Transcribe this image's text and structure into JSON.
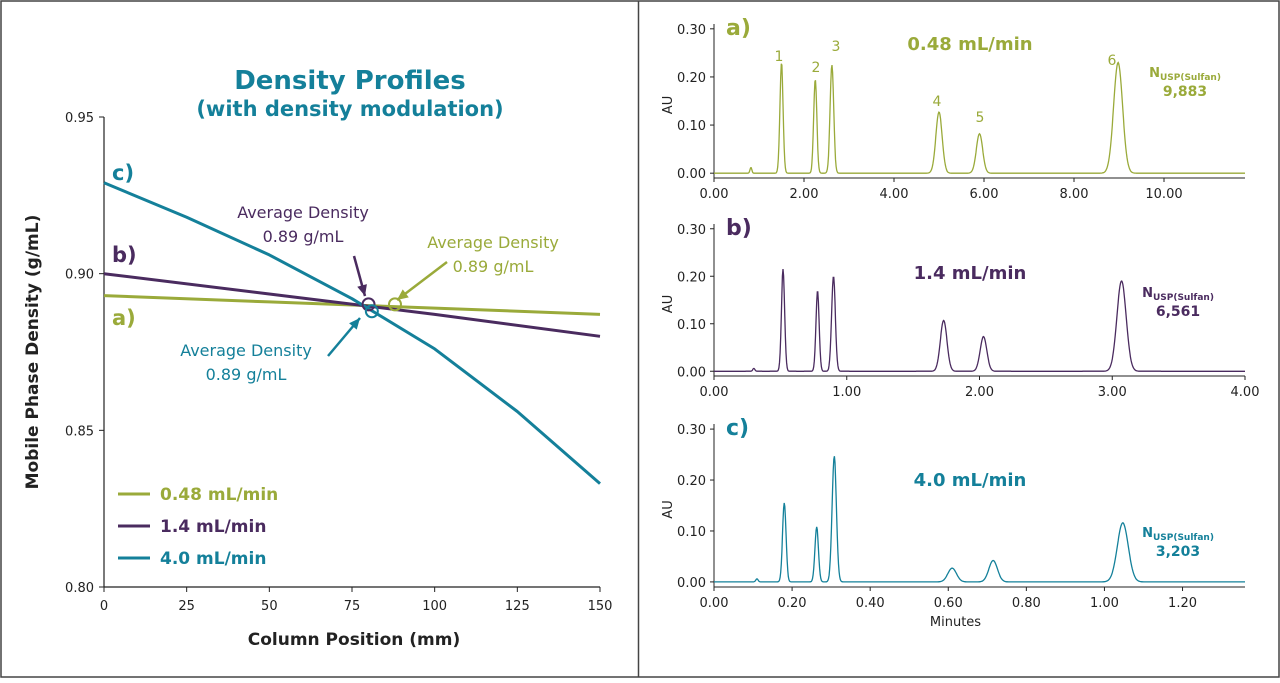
{
  "colors": {
    "olive": "#9aaa3a",
    "purple": "#4a2b5f",
    "teal": "#14809a",
    "axis": "#222222",
    "frame": "#444444"
  },
  "chart_data": [
    {
      "type": "line",
      "title": "Density Profiles",
      "subtitle": "(with density modulation)",
      "xlabel": "Column Position (mm)",
      "ylabel": "Mobile Phase Density (g/mL)",
      "xlim": [
        0,
        150
      ],
      "ylim": [
        0.8,
        0.95
      ],
      "xticks": [
        0,
        25,
        50,
        75,
        100,
        125,
        150
      ],
      "yticks": [
        0.8,
        0.85,
        0.9,
        0.95
      ],
      "xtick_labels": [
        "0",
        "25",
        "50",
        "75",
        "100",
        "125",
        "150"
      ],
      "ytick_labels": [
        "0.80",
        "0.85",
        "0.90",
        "0.95"
      ],
      "grid": false,
      "legend_position": "bottom-left",
      "series": [
        {
          "name": "0.48 mL/min",
          "color": "#9aaa3a",
          "curve_label": "a)",
          "x": [
            0,
            50,
            100,
            150
          ],
          "y": [
            0.893,
            0.891,
            0.889,
            0.887
          ]
        },
        {
          "name": "1.4 mL/min",
          "color": "#4a2b5f",
          "curve_label": "b)",
          "x": [
            0,
            50,
            100,
            150
          ],
          "y": [
            0.9,
            0.8935,
            0.887,
            0.88
          ]
        },
        {
          "name": "4.0 mL/min",
          "color": "#14809a",
          "curve_label": "c)",
          "x": [
            0,
            25,
            50,
            75,
            100,
            125,
            150
          ],
          "y": [
            0.929,
            0.918,
            0.906,
            0.892,
            0.876,
            0.856,
            0.833
          ]
        }
      ],
      "annotations": [
        {
          "line1": "Average Density",
          "line2": "0.89 g/mL",
          "color": "#4a2b5f",
          "marker_x": 80,
          "marker_y": 0.8902
        },
        {
          "line1": "Average Density",
          "line2": "0.89 g/mL",
          "color": "#9aaa3a",
          "marker_x": 88,
          "marker_y": 0.8902
        },
        {
          "line1": "Average Density",
          "line2": "0.89 g/mL",
          "color": "#14809a",
          "marker_x": 81,
          "marker_y": 0.888
        }
      ]
    },
    {
      "type": "line",
      "panel_label": "a)",
      "flow_label": "0.48 mL/min",
      "color": "#9aaa3a",
      "ylabel": "AU",
      "xlim": [
        0,
        11.8
      ],
      "ylim": [
        -0.01,
        0.31
      ],
      "xticks": [
        0,
        2,
        4,
        6,
        8,
        10
      ],
      "xtick_labels": [
        "0.00",
        "2.00",
        "4.00",
        "6.00",
        "8.00",
        "10.00"
      ],
      "yticks": [
        0,
        0.1,
        0.2,
        0.3
      ],
      "ytick_labels": [
        "0.00",
        "0.10",
        "0.20",
        "0.30"
      ],
      "n_label_main": "N",
      "n_label_sub": "USP(Sulfan)",
      "n_value": "9,883",
      "peaks": [
        {
          "label": "1",
          "t": 1.5,
          "h": 0.23,
          "w": 0.035
        },
        {
          "label": "2",
          "t": 2.25,
          "h": 0.195,
          "w": 0.035
        },
        {
          "label": "3",
          "t": 2.62,
          "h": 0.225,
          "w": 0.04
        },
        {
          "label": "4",
          "t": 5.0,
          "h": 0.127,
          "w": 0.07
        },
        {
          "label": "5",
          "t": 5.9,
          "h": 0.082,
          "w": 0.07
        },
        {
          "label": "6",
          "t": 8.98,
          "h": 0.23,
          "w": 0.1
        }
      ],
      "minor_peaks": [
        {
          "t": 0.82,
          "h": 0.012,
          "w": 0.02
        }
      ]
    },
    {
      "type": "line",
      "panel_label": "b)",
      "flow_label": "1.4 mL/min",
      "color": "#4a2b5f",
      "ylabel": "AU",
      "xlim": [
        0,
        4.0
      ],
      "ylim": [
        -0.01,
        0.31
      ],
      "xticks": [
        0,
        1,
        2,
        3,
        4
      ],
      "xtick_labels": [
        "0.00",
        "1.00",
        "2.00",
        "3.00",
        "4.00"
      ],
      "yticks": [
        0,
        0.1,
        0.2,
        0.3
      ],
      "ytick_labels": [
        "0.00",
        "0.10",
        "0.20",
        "0.30"
      ],
      "n_label_main": "N",
      "n_label_sub": "USP(Sulfan)",
      "n_value": "6,561",
      "peaks": [
        {
          "t": 0.52,
          "h": 0.215,
          "w": 0.012
        },
        {
          "t": 0.78,
          "h": 0.17,
          "w": 0.012
        },
        {
          "t": 0.9,
          "h": 0.2,
          "w": 0.014
        },
        {
          "t": 1.73,
          "h": 0.107,
          "w": 0.025
        },
        {
          "t": 2.03,
          "h": 0.073,
          "w": 0.025
        },
        {
          "t": 3.07,
          "h": 0.19,
          "w": 0.035
        }
      ],
      "minor_peaks": [
        {
          "t": 0.3,
          "h": 0.006,
          "w": 0.008
        }
      ]
    },
    {
      "type": "line",
      "panel_label": "c)",
      "flow_label": "4.0 mL/min",
      "color": "#14809a",
      "ylabel": "AU",
      "xlabel": "Minutes",
      "xlim": [
        0,
        1.36
      ],
      "ylim": [
        -0.01,
        0.31
      ],
      "xticks": [
        0,
        0.2,
        0.4,
        0.6,
        0.8,
        1.0,
        1.2
      ],
      "xtick_labels": [
        "0.00",
        "0.20",
        "0.40",
        "0.60",
        "0.80",
        "1.00",
        "1.20"
      ],
      "yticks": [
        0,
        0.1,
        0.2,
        0.3
      ],
      "ytick_labels": [
        "0.00",
        "0.10",
        "0.20",
        "0.30"
      ],
      "n_label_main": "N",
      "n_label_sub": "USP(Sulfan)",
      "n_value": "3,203",
      "peaks": [
        {
          "t": 0.18,
          "h": 0.155,
          "w": 0.0045
        },
        {
          "t": 0.263,
          "h": 0.108,
          "w": 0.0045
        },
        {
          "t": 0.308,
          "h": 0.247,
          "w": 0.0055
        },
        {
          "t": 0.61,
          "h": 0.027,
          "w": 0.011
        },
        {
          "t": 0.715,
          "h": 0.042,
          "w": 0.011
        },
        {
          "t": 1.047,
          "h": 0.116,
          "w": 0.014
        }
      ],
      "minor_peaks": [
        {
          "t": 0.11,
          "h": 0.006,
          "w": 0.003
        }
      ]
    }
  ]
}
